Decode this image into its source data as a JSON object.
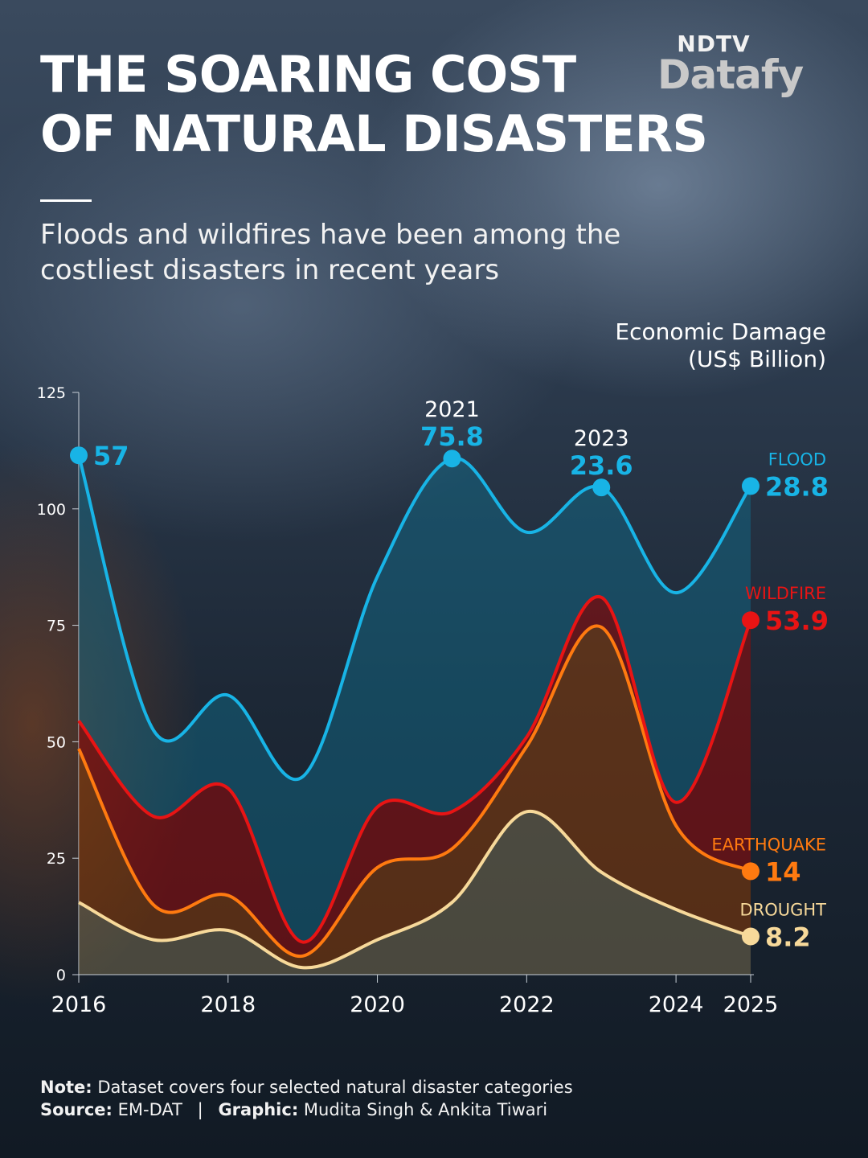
{
  "header": {
    "title_line1": "THE SOARING COST",
    "title_line2": "OF NATURAL DISASTERS",
    "subtitle": "Floods and wildfires have been among the costliest disasters in recent years",
    "logo_top": "NDTV",
    "logo_main": "Datafy"
  },
  "unit": {
    "line1": "Economic Damage",
    "line2": "(US$ Billion)"
  },
  "footer": {
    "note_label": "Note:",
    "note_text": "Dataset covers four selected natural disaster categories",
    "source_label": "Source:",
    "source_text": "EM-DAT",
    "separator": "|",
    "graphic_label": "Graphic:",
    "graphic_text": "Mudita Singh & Ankita Tiwari"
  },
  "colors": {
    "flood": "#18b4e6",
    "wildfire": "#e81414",
    "earthquake": "#ff7a10",
    "drought": "#f7d99a"
  },
  "chart_data": {
    "type": "area",
    "stacked": true,
    "x": [
      2016,
      2017,
      2018,
      2019,
      2020,
      2021,
      2022,
      2023,
      2024,
      2025
    ],
    "ylim": [
      0,
      125
    ],
    "yticks": [
      0,
      25,
      50,
      75,
      100,
      125
    ],
    "xticks": [
      "2016",
      "2018",
      "2020",
      "2022",
      "2024",
      "2025"
    ],
    "series": [
      {
        "name": "DROUGHT",
        "key": "drought",
        "values": [
          15.5,
          7.5,
          9.5,
          1.5,
          7.5,
          15.5,
          35,
          22,
          14,
          8.2
        ]
      },
      {
        "name": "EARTHQUAKE",
        "key": "earthquake",
        "values": [
          33,
          7.5,
          7.5,
          2.5,
          15.5,
          11.5,
          14,
          52.6,
          18,
          14
        ]
      },
      {
        "name": "WILDFIRE",
        "key": "wildfire",
        "values": [
          6,
          19,
          23,
          3,
          13,
          8,
          2,
          6.4,
          5,
          53.9
        ]
      },
      {
        "name": "FLOOD",
        "key": "flood",
        "values": [
          57,
          18.5,
          20,
          35.5,
          49.5,
          75.8,
          44,
          23.6,
          45,
          28.8
        ]
      }
    ],
    "annotations": [
      {
        "x": 2016,
        "series": "flood",
        "value_text": "57"
      },
      {
        "x": 2021,
        "series": "flood",
        "year_text": "2021",
        "value_text": "75.8"
      },
      {
        "x": 2023,
        "series": "flood",
        "year_text": "2023",
        "value_text": "23.6"
      },
      {
        "x": 2025,
        "series": "flood",
        "name_text": "FLOOD",
        "value_text": "28.8"
      },
      {
        "x": 2025,
        "series": "wildfire",
        "name_text": "WILDFIRE",
        "value_text": "53.9"
      },
      {
        "x": 2025,
        "series": "earthquake",
        "name_text": "EARTHQUAKE",
        "value_text": "14"
      },
      {
        "x": 2025,
        "series": "drought",
        "name_text": "DROUGHT",
        "value_text": "8.2"
      }
    ]
  }
}
